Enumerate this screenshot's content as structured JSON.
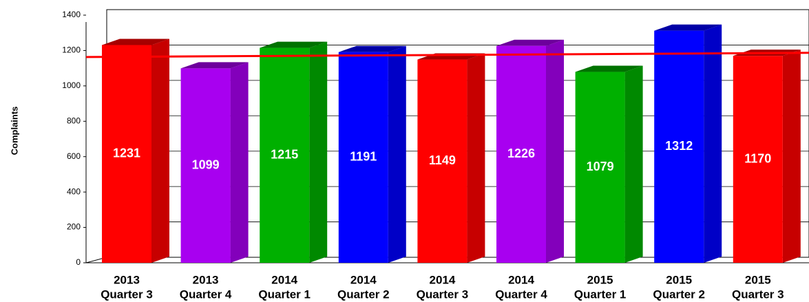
{
  "chart_data": {
    "type": "bar3d",
    "y_label": "Complaints",
    "categories": [
      [
        "2013",
        "Quarter 3"
      ],
      [
        "2013",
        "Quarter 4"
      ],
      [
        "2014",
        "Quarter 1"
      ],
      [
        "2014",
        "Quarter 2"
      ],
      [
        "2014",
        "Quarter 3"
      ],
      [
        "2014",
        "Quarter 4"
      ],
      [
        "2015",
        "Quarter 1"
      ],
      [
        "2015",
        "Quarter 2"
      ],
      [
        "2015",
        "Quarter 3"
      ]
    ],
    "values": [
      1231,
      1099,
      1215,
      1191,
      1149,
      1226,
      1079,
      1312,
      1170
    ],
    "colors": [
      "#ff0000",
      "#a800f0",
      "#00b000",
      "#0000ff",
      "#ff0000",
      "#a800f0",
      "#00b000",
      "#0000ff",
      "#ff0000"
    ],
    "trend_line": {
      "values": [
        1163,
        1187
      ],
      "color": "#ff0000"
    },
    "ylim": [
      0,
      1400
    ],
    "yticks": [
      0,
      200,
      400,
      600,
      800,
      1000,
      1200,
      1400
    ],
    "grid": true
  }
}
